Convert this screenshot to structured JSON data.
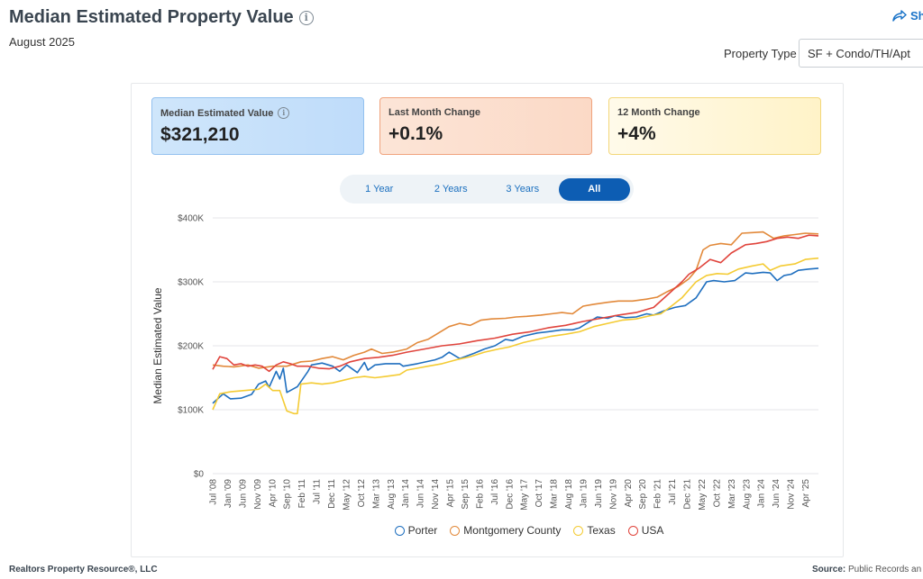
{
  "header": {
    "title": "Median Estimated Property Value",
    "date": "August 2025",
    "share_label": "Sh",
    "info_glyph": "i"
  },
  "property_type": {
    "label": "Property Type",
    "value": "SF + Condo/TH/Apt"
  },
  "kpis": [
    {
      "label": "Median Estimated Value",
      "value": "$321,210",
      "has_info": true
    },
    {
      "label": "Last Month Change",
      "value": "+0.1%"
    },
    {
      "label": "12 Month Change",
      "value": "+4%"
    }
  ],
  "range_buttons": [
    {
      "label": "1 Year",
      "active": false
    },
    {
      "label": "2 Years",
      "active": false
    },
    {
      "label": "3 Years",
      "active": false
    },
    {
      "label": "All",
      "active": true
    }
  ],
  "footer": {
    "left": "Realtors Property Resource®, LLC",
    "source_label": "Source:",
    "source_text": "Public Records an"
  },
  "colors": {
    "Porter": "#1f6fbf",
    "Montgomery County": "#e2893a",
    "Texas": "#f4cb33",
    "USA": "#e0443c",
    "grid": "#e4e6e8",
    "active_button": "#0d5db3"
  },
  "chart_data": {
    "type": "line",
    "title": "",
    "xlabel": "",
    "ylabel": "Median Estimated Value",
    "ylim": [
      0,
      400000
    ],
    "y_ticks": [
      0,
      100000,
      200000,
      300000,
      400000
    ],
    "y_tick_labels": [
      "$0",
      "$100K",
      "$200K",
      "$300K",
      "$400K"
    ],
    "x_range": [
      2008.5,
      2025.67
    ],
    "x_tick_labels": [
      "Jul '08",
      "Jan '09",
      "Jun '09",
      "Nov '09",
      "Apr '10",
      "Sep '10",
      "Feb '11",
      "Jul '11",
      "Dec '11",
      "May '12",
      "Oct '12",
      "Mar '13",
      "Aug '13",
      "Jan '14",
      "Jun '14",
      "Nov '14",
      "Apr '15",
      "Sep '15",
      "Feb '16",
      "Jul '16",
      "Dec '16",
      "May '17",
      "Oct '17",
      "Mar '18",
      "Aug '18",
      "Jan '19",
      "Jun '19",
      "Nov '19",
      "Apr '20",
      "Sep '20",
      "Feb '21",
      "Jul '21",
      "Dec '21",
      "May '22",
      "Oct '22",
      "Mar '23",
      "Aug '23",
      "Jan '24",
      "Jun '24",
      "Nov '24",
      "Apr '25"
    ],
    "legend": [
      "Porter",
      "Montgomery County",
      "Texas",
      "USA"
    ],
    "legend_position": "bottom",
    "grid": true,
    "series": [
      {
        "name": "Porter",
        "points": [
          [
            2008.5,
            110000
          ],
          [
            2008.8,
            125000
          ],
          [
            2009.0,
            117000
          ],
          [
            2009.3,
            118000
          ],
          [
            2009.6,
            124000
          ],
          [
            2009.8,
            140000
          ],
          [
            2010.0,
            145000
          ],
          [
            2010.1,
            135000
          ],
          [
            2010.3,
            160000
          ],
          [
            2010.4,
            148000
          ],
          [
            2010.5,
            165000
          ],
          [
            2010.6,
            127000
          ],
          [
            2010.9,
            136000
          ],
          [
            2011.2,
            160000
          ],
          [
            2011.3,
            170000
          ],
          [
            2011.6,
            173000
          ],
          [
            2011.9,
            168000
          ],
          [
            2012.1,
            160000
          ],
          [
            2012.3,
            170000
          ],
          [
            2012.6,
            158000
          ],
          [
            2012.8,
            174000
          ],
          [
            2012.9,
            162000
          ],
          [
            2013.1,
            170000
          ],
          [
            2013.4,
            172000
          ],
          [
            2013.8,
            172000
          ],
          [
            2013.9,
            168000
          ],
          [
            2014.3,
            172000
          ],
          [
            2014.8,
            178000
          ],
          [
            2015.0,
            182000
          ],
          [
            2015.2,
            190000
          ],
          [
            2015.5,
            180000
          ],
          [
            2015.9,
            188000
          ],
          [
            2016.2,
            195000
          ],
          [
            2016.5,
            200000
          ],
          [
            2016.8,
            210000
          ],
          [
            2017.0,
            208000
          ],
          [
            2017.3,
            215000
          ],
          [
            2017.7,
            220000
          ],
          [
            2018.0,
            222000
          ],
          [
            2018.4,
            225000
          ],
          [
            2018.7,
            225000
          ],
          [
            2018.9,
            228000
          ],
          [
            2019.1,
            235000
          ],
          [
            2019.4,
            245000
          ],
          [
            2019.7,
            243000
          ],
          [
            2019.9,
            247000
          ],
          [
            2020.2,
            244000
          ],
          [
            2020.5,
            245000
          ],
          [
            2020.8,
            250000
          ],
          [
            2021.0,
            248000
          ],
          [
            2021.3,
            255000
          ],
          [
            2021.6,
            260000
          ],
          [
            2021.9,
            263000
          ],
          [
            2022.2,
            275000
          ],
          [
            2022.5,
            300000
          ],
          [
            2022.7,
            302000
          ],
          [
            2023.0,
            300000
          ],
          [
            2023.3,
            302000
          ],
          [
            2023.6,
            314000
          ],
          [
            2023.8,
            313000
          ],
          [
            2024.1,
            315000
          ],
          [
            2024.3,
            314000
          ],
          [
            2024.5,
            302000
          ],
          [
            2024.7,
            310000
          ],
          [
            2024.9,
            312000
          ],
          [
            2025.1,
            318000
          ],
          [
            2025.4,
            320000
          ],
          [
            2025.67,
            321210
          ]
        ]
      },
      {
        "name": "Montgomery County",
        "points": [
          [
            2008.5,
            170000
          ],
          [
            2008.8,
            168000
          ],
          [
            2009.1,
            167000
          ],
          [
            2009.5,
            170000
          ],
          [
            2009.8,
            165000
          ],
          [
            2010.2,
            168000
          ],
          [
            2010.6,
            168000
          ],
          [
            2011.0,
            175000
          ],
          [
            2011.3,
            176000
          ],
          [
            2011.6,
            180000
          ],
          [
            2011.9,
            183000
          ],
          [
            2012.2,
            178000
          ],
          [
            2012.5,
            185000
          ],
          [
            2012.8,
            190000
          ],
          [
            2013.0,
            195000
          ],
          [
            2013.3,
            188000
          ],
          [
            2013.6,
            190000
          ],
          [
            2014.0,
            195000
          ],
          [
            2014.3,
            205000
          ],
          [
            2014.6,
            210000
          ],
          [
            2014.9,
            220000
          ],
          [
            2015.2,
            230000
          ],
          [
            2015.5,
            235000
          ],
          [
            2015.8,
            232000
          ],
          [
            2016.1,
            240000
          ],
          [
            2016.4,
            242000
          ],
          [
            2016.8,
            243000
          ],
          [
            2017.1,
            245000
          ],
          [
            2017.4,
            246000
          ],
          [
            2017.8,
            248000
          ],
          [
            2018.1,
            250000
          ],
          [
            2018.4,
            252000
          ],
          [
            2018.7,
            250000
          ],
          [
            2019.0,
            262000
          ],
          [
            2019.3,
            265000
          ],
          [
            2019.7,
            268000
          ],
          [
            2020.0,
            270000
          ],
          [
            2020.4,
            270000
          ],
          [
            2020.8,
            273000
          ],
          [
            2021.1,
            276000
          ],
          [
            2021.4,
            285000
          ],
          [
            2021.7,
            293000
          ],
          [
            2022.0,
            305000
          ],
          [
            2022.2,
            318000
          ],
          [
            2022.4,
            350000
          ],
          [
            2022.6,
            357000
          ],
          [
            2022.9,
            360000
          ],
          [
            2023.2,
            358000
          ],
          [
            2023.5,
            376000
          ],
          [
            2023.8,
            377000
          ],
          [
            2024.1,
            378000
          ],
          [
            2024.4,
            368000
          ],
          [
            2024.7,
            372000
          ],
          [
            2025.0,
            374000
          ],
          [
            2025.3,
            376000
          ],
          [
            2025.67,
            375000
          ]
        ]
      },
      {
        "name": "Texas",
        "points": [
          [
            2008.5,
            100000
          ],
          [
            2008.7,
            125000
          ],
          [
            2009.0,
            128000
          ],
          [
            2009.4,
            130000
          ],
          [
            2009.8,
            132000
          ],
          [
            2010.0,
            140000
          ],
          [
            2010.2,
            130000
          ],
          [
            2010.4,
            130000
          ],
          [
            2010.6,
            98000
          ],
          [
            2010.8,
            94000
          ],
          [
            2010.9,
            94000
          ],
          [
            2011.0,
            140000
          ],
          [
            2011.3,
            142000
          ],
          [
            2011.6,
            140000
          ],
          [
            2011.9,
            142000
          ],
          [
            2012.2,
            146000
          ],
          [
            2012.5,
            150000
          ],
          [
            2012.8,
            152000
          ],
          [
            2013.1,
            150000
          ],
          [
            2013.4,
            152000
          ],
          [
            2013.8,
            155000
          ],
          [
            2014.0,
            162000
          ],
          [
            2014.3,
            165000
          ],
          [
            2014.6,
            168000
          ],
          [
            2015.0,
            172000
          ],
          [
            2015.4,
            178000
          ],
          [
            2015.8,
            183000
          ],
          [
            2016.2,
            190000
          ],
          [
            2016.6,
            195000
          ],
          [
            2016.9,
            198000
          ],
          [
            2017.3,
            205000
          ],
          [
            2017.7,
            210000
          ],
          [
            2018.1,
            215000
          ],
          [
            2018.5,
            218000
          ],
          [
            2018.9,
            222000
          ],
          [
            2019.3,
            230000
          ],
          [
            2019.7,
            235000
          ],
          [
            2020.1,
            240000
          ],
          [
            2020.5,
            242000
          ],
          [
            2020.9,
            247000
          ],
          [
            2021.2,
            250000
          ],
          [
            2021.5,
            262000
          ],
          [
            2021.8,
            275000
          ],
          [
            2022.2,
            300000
          ],
          [
            2022.5,
            310000
          ],
          [
            2022.8,
            313000
          ],
          [
            2023.1,
            312000
          ],
          [
            2023.4,
            320000
          ],
          [
            2023.8,
            325000
          ],
          [
            2024.1,
            328000
          ],
          [
            2024.3,
            318000
          ],
          [
            2024.6,
            325000
          ],
          [
            2025.0,
            328000
          ],
          [
            2025.3,
            335000
          ],
          [
            2025.67,
            337000
          ]
        ]
      },
      {
        "name": "USA",
        "points": [
          [
            2008.5,
            163000
          ],
          [
            2008.7,
            183000
          ],
          [
            2008.9,
            180000
          ],
          [
            2009.1,
            170000
          ],
          [
            2009.3,
            172000
          ],
          [
            2009.5,
            168000
          ],
          [
            2009.7,
            170000
          ],
          [
            2009.9,
            168000
          ],
          [
            2010.1,
            160000
          ],
          [
            2010.3,
            170000
          ],
          [
            2010.5,
            175000
          ],
          [
            2010.7,
            172000
          ],
          [
            2010.9,
            168000
          ],
          [
            2011.2,
            168000
          ],
          [
            2011.5,
            165000
          ],
          [
            2011.8,
            164000
          ],
          [
            2012.1,
            168000
          ],
          [
            2012.4,
            175000
          ],
          [
            2012.8,
            180000
          ],
          [
            2013.2,
            182000
          ],
          [
            2013.6,
            185000
          ],
          [
            2014.0,
            190000
          ],
          [
            2014.5,
            195000
          ],
          [
            2015.0,
            200000
          ],
          [
            2015.5,
            203000
          ],
          [
            2016.0,
            208000
          ],
          [
            2016.5,
            212000
          ],
          [
            2017.0,
            218000
          ],
          [
            2017.5,
            222000
          ],
          [
            2018.0,
            228000
          ],
          [
            2018.5,
            232000
          ],
          [
            2019.0,
            238000
          ],
          [
            2019.5,
            243000
          ],
          [
            2020.0,
            248000
          ],
          [
            2020.5,
            252000
          ],
          [
            2021.0,
            260000
          ],
          [
            2021.5,
            285000
          ],
          [
            2021.8,
            300000
          ],
          [
            2022.0,
            312000
          ],
          [
            2022.3,
            322000
          ],
          [
            2022.6,
            335000
          ],
          [
            2022.9,
            330000
          ],
          [
            2023.2,
            345000
          ],
          [
            2023.6,
            358000
          ],
          [
            2023.9,
            360000
          ],
          [
            2024.2,
            363000
          ],
          [
            2024.5,
            368000
          ],
          [
            2024.8,
            370000
          ],
          [
            2025.1,
            368000
          ],
          [
            2025.4,
            373000
          ],
          [
            2025.67,
            372000
          ]
        ]
      }
    ]
  }
}
